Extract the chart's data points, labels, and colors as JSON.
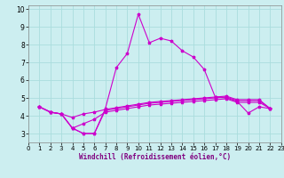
{
  "xlabel": "Windchill (Refroidissement éolien,°C)",
  "xlim": [
    0,
    23
  ],
  "ylim": [
    2.5,
    10.2
  ],
  "yticks": [
    3,
    4,
    5,
    6,
    7,
    8,
    9,
    10
  ],
  "xticks": [
    0,
    1,
    2,
    3,
    4,
    5,
    6,
    7,
    8,
    9,
    10,
    11,
    12,
    13,
    14,
    15,
    16,
    17,
    18,
    19,
    20,
    21,
    22,
    23
  ],
  "bg_color": "#cceef0",
  "line_color": "#cc00cc",
  "grid_color": "#aadddd",
  "series": [
    [
      4.5,
      4.2,
      4.1,
      3.3,
      3.0,
      3.0,
      4.4,
      6.7,
      7.5,
      9.7,
      8.1,
      8.35,
      8.2,
      7.65,
      7.3,
      6.6,
      5.05,
      5.0,
      4.8,
      4.15,
      4.5,
      4.4
    ],
    [
      4.5,
      4.2,
      4.1,
      3.3,
      3.0,
      3.0,
      4.3,
      4.4,
      4.5,
      4.6,
      4.7,
      4.75,
      4.8,
      4.85,
      4.9,
      4.95,
      5.0,
      5.05,
      4.85,
      4.85,
      4.85,
      4.4
    ],
    [
      4.5,
      4.2,
      4.1,
      3.3,
      3.55,
      3.8,
      4.2,
      4.3,
      4.4,
      4.5,
      4.6,
      4.65,
      4.7,
      4.75,
      4.8,
      4.85,
      4.9,
      4.95,
      4.75,
      4.75,
      4.75,
      4.4
    ],
    [
      4.5,
      4.2,
      4.1,
      3.9,
      4.1,
      4.2,
      4.35,
      4.45,
      4.55,
      4.65,
      4.75,
      4.8,
      4.85,
      4.9,
      4.95,
      5.0,
      5.05,
      5.1,
      4.9,
      4.9,
      4.9,
      4.4
    ]
  ],
  "x_start": 1,
  "marker": "*",
  "markersize": 2.5,
  "linewidth": 0.8,
  "xlabel_fontsize": 5.5,
  "tick_fontsize": 5.0,
  "ytick_fontsize": 5.5
}
